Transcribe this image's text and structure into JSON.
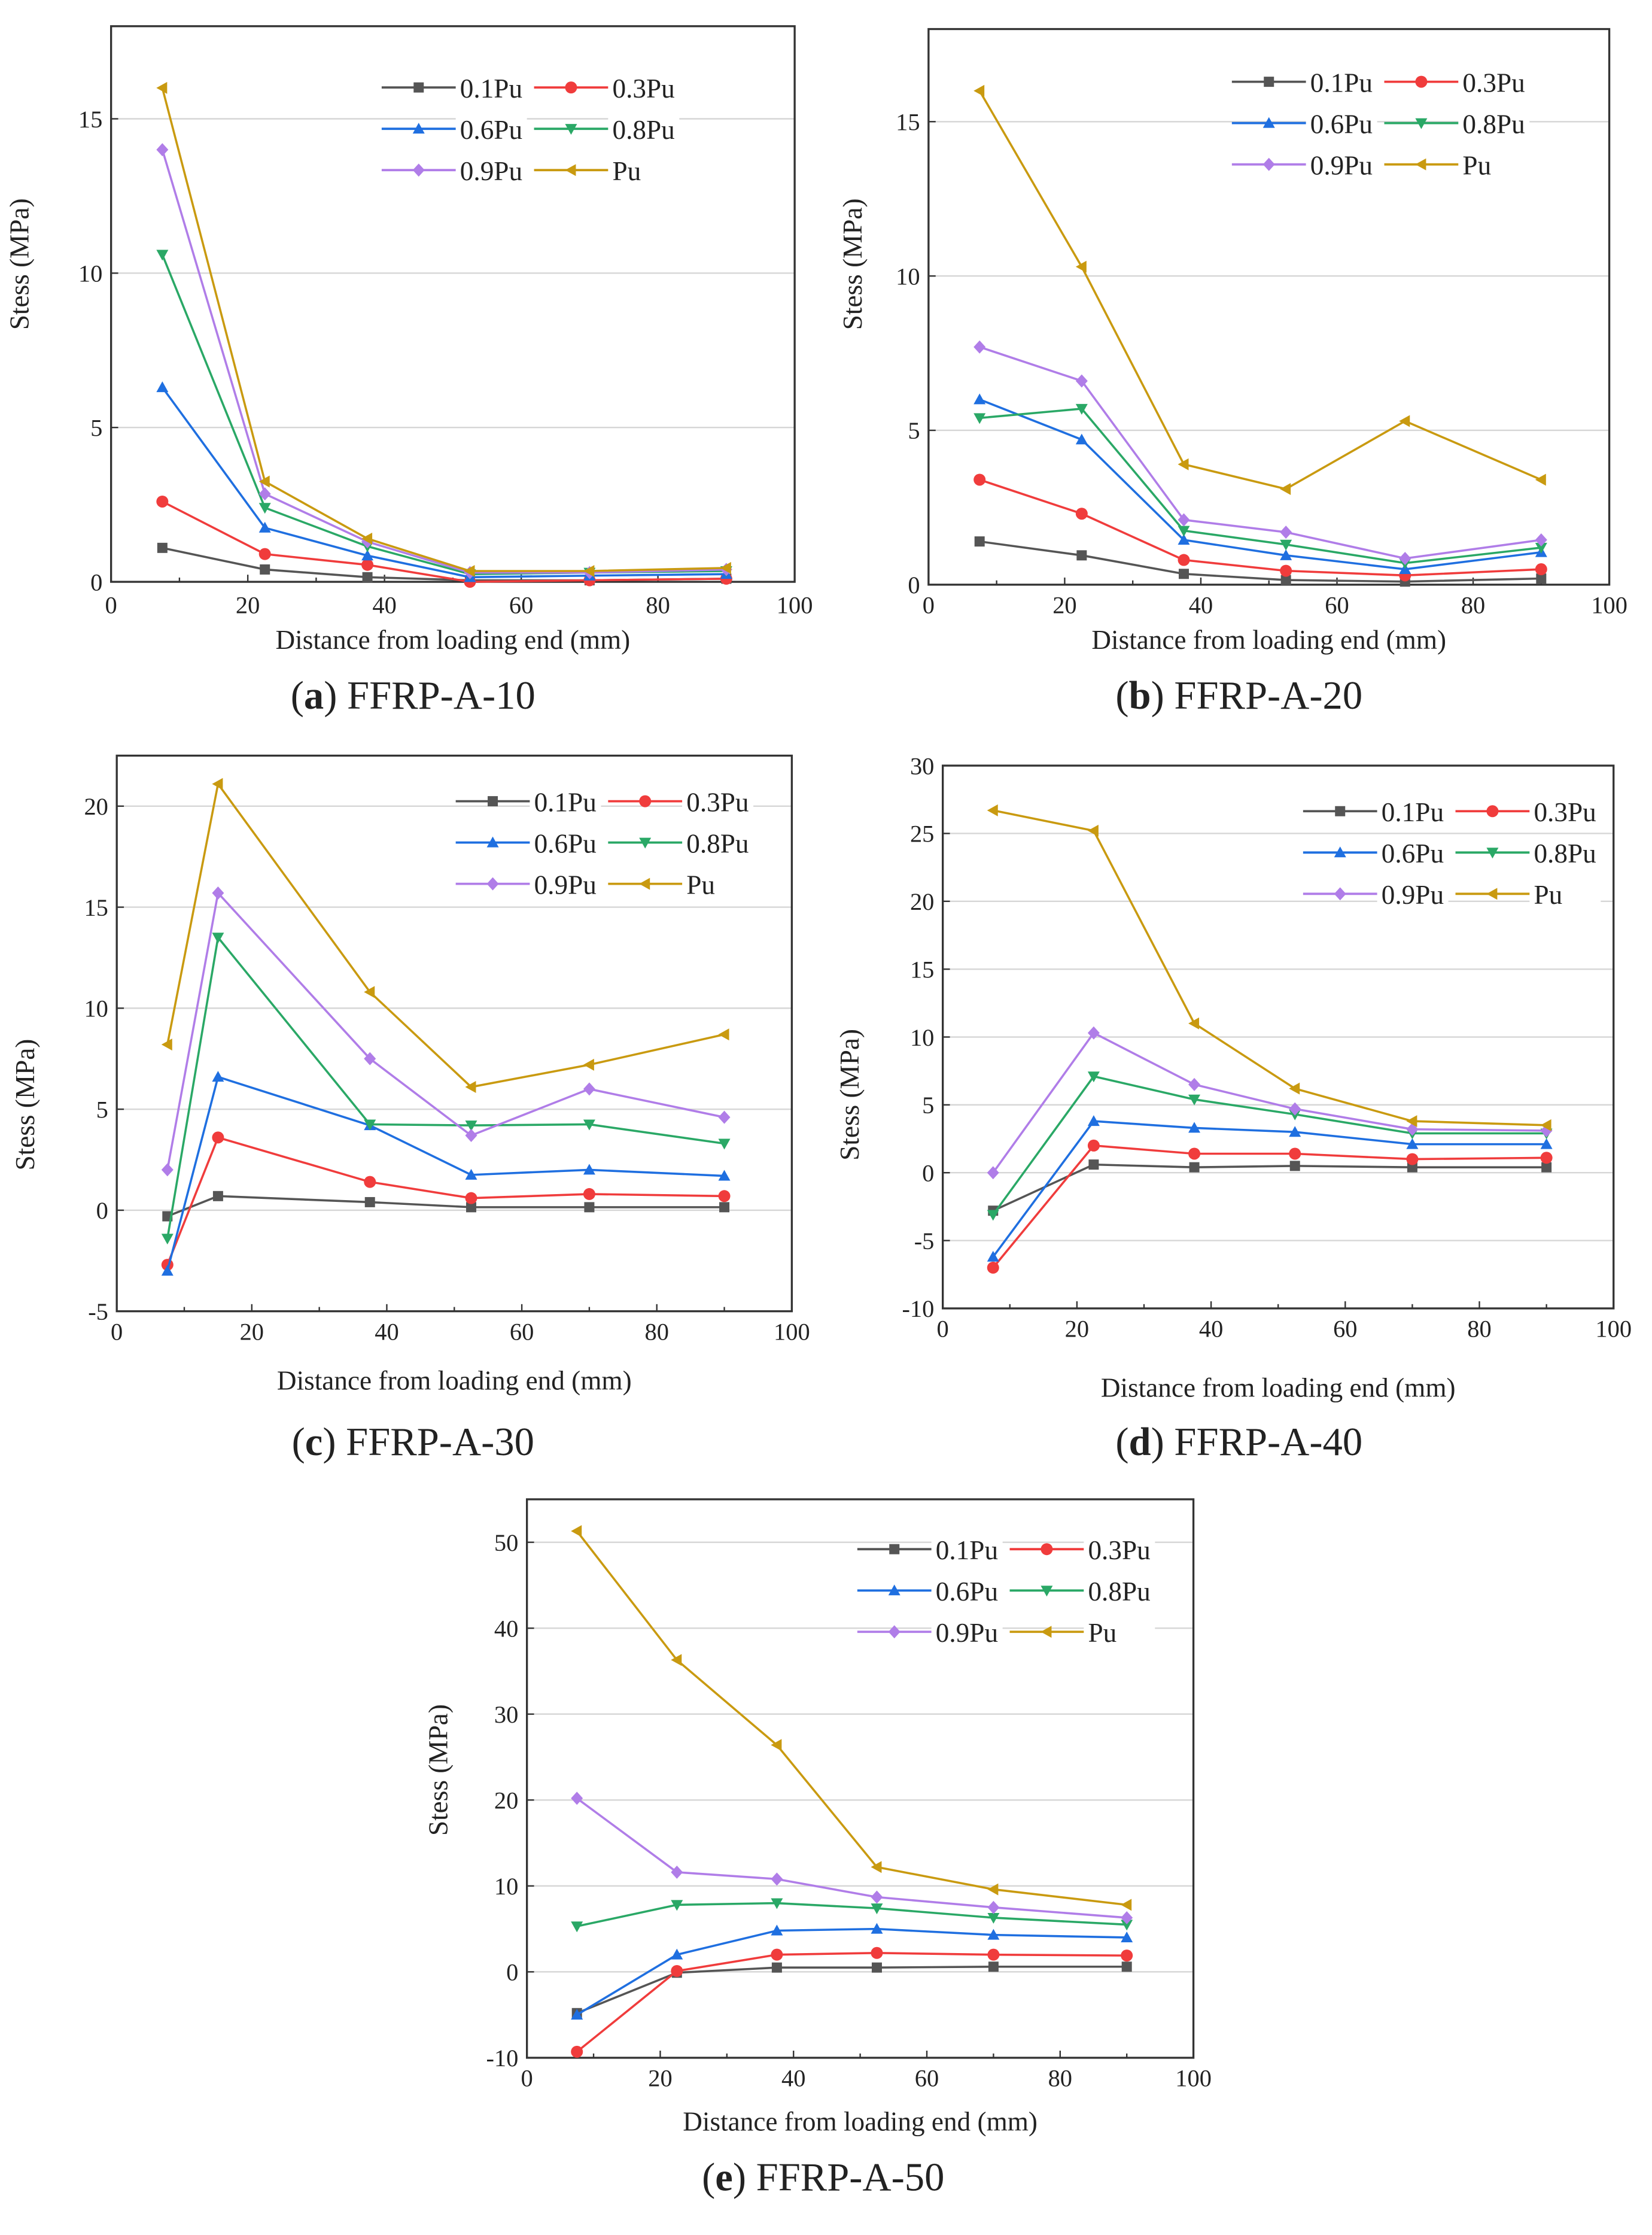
{
  "series_style": [
    {
      "name": "0.1Pu",
      "color": "#555555",
      "marker": "square"
    },
    {
      "name": "0.3Pu",
      "color": "#f03c3c",
      "marker": "circle"
    },
    {
      "name": "0.6Pu",
      "color": "#1f6fe0",
      "marker": "triangle-up"
    },
    {
      "name": "0.8Pu",
      "color": "#2aa866",
      "marker": "triangle-down"
    },
    {
      "name": "0.9Pu",
      "color": "#b07de8",
      "marker": "diamond"
    },
    {
      "name": "Pu",
      "color": "#c99a10",
      "marker": "triangle-left"
    }
  ],
  "chart_data": [
    {
      "type": "line",
      "panel": "a",
      "title": "FFRP-A-10",
      "xlabel": "Distance from loading end (mm)",
      "ylabel": "Stess (MPa)",
      "xlim": [
        0,
        100
      ],
      "ylim": [
        0,
        18
      ],
      "xticks": [
        0,
        20,
        40,
        60,
        80,
        100
      ],
      "yticks": [
        0,
        5,
        10,
        15
      ],
      "grid": "horizontal",
      "legend": "top-right",
      "x": [
        7.5,
        22.5,
        37.5,
        52.5,
        70,
        90
      ],
      "series": [
        {
          "name": "0.1Pu",
          "values": [
            1.1,
            0.4,
            0.15,
            0.05,
            0.05,
            0.1
          ]
        },
        {
          "name": "0.3Pu",
          "values": [
            2.6,
            0.9,
            0.55,
            0,
            0.05,
            0.1
          ]
        },
        {
          "name": "0.6Pu",
          "values": [
            6.3,
            1.75,
            0.85,
            0.15,
            0.2,
            0.25
          ]
        },
        {
          "name": "0.8Pu",
          "values": [
            10.6,
            2.4,
            1.15,
            0.25,
            0.3,
            0.35
          ]
        },
        {
          "name": "0.9Pu",
          "values": [
            14.0,
            2.85,
            1.3,
            0.3,
            0.3,
            0.4
          ]
        },
        {
          "name": "Pu",
          "values": [
            16.0,
            3.25,
            1.4,
            0.35,
            0.35,
            0.45
          ]
        }
      ]
    },
    {
      "type": "line",
      "panel": "b",
      "title": "FFRP-A-20",
      "xlabel": "Distance from loading end (mm)",
      "ylabel": "Stess (MPa)",
      "xlim": [
        0,
        100
      ],
      "ylim": [
        0,
        18
      ],
      "xticks": [
        0,
        20,
        40,
        60,
        80,
        100
      ],
      "yticks": [
        0,
        5,
        10,
        15
      ],
      "grid": "horizontal",
      "legend": "top-right",
      "x": [
        7.5,
        22.5,
        37.5,
        52.5,
        70,
        90
      ],
      "series": [
        {
          "name": "0.1Pu",
          "values": [
            1.4,
            0.95,
            0.35,
            0.15,
            0.1,
            0.2
          ]
        },
        {
          "name": "0.3Pu",
          "values": [
            3.4,
            2.3,
            0.8,
            0.45,
            0.3,
            0.5
          ]
        },
        {
          "name": "0.6Pu",
          "values": [
            6.0,
            4.7,
            1.45,
            0.95,
            0.5,
            1.05
          ]
        },
        {
          "name": "0.8Pu",
          "values": [
            5.4,
            5.7,
            1.75,
            1.3,
            0.7,
            1.2
          ]
        },
        {
          "name": "0.9Pu",
          "values": [
            7.7,
            6.6,
            2.1,
            1.7,
            0.85,
            1.45
          ]
        },
        {
          "name": "Pu",
          "values": [
            16.0,
            10.3,
            3.9,
            3.1,
            5.3,
            3.4
          ]
        }
      ]
    },
    {
      "type": "line",
      "panel": "c",
      "title": "FFRP-A-30",
      "xlabel": "Distance from loading end (mm)",
      "ylabel": "Stess (MPa)",
      "xlim": [
        0,
        100
      ],
      "ylim": [
        -5,
        22.5
      ],
      "xticks": [
        0,
        20,
        40,
        60,
        80,
        100
      ],
      "yticks": [
        -5,
        0,
        5,
        10,
        15,
        20
      ],
      "grid": "horizontal",
      "legend": "top-right",
      "x": [
        7.5,
        15,
        37.5,
        52.5,
        70,
        90
      ],
      "series": [
        {
          "name": "0.1Pu",
          "values": [
            -0.3,
            0.7,
            0.4,
            0.15,
            0.15,
            0.15
          ]
        },
        {
          "name": "0.3Pu",
          "values": [
            -2.7,
            3.6,
            1.4,
            0.6,
            0.8,
            0.7
          ]
        },
        {
          "name": "0.6Pu",
          "values": [
            -3.0,
            6.6,
            4.2,
            1.75,
            2.0,
            1.7
          ]
        },
        {
          "name": "0.8Pu",
          "values": [
            -1.4,
            13.5,
            4.25,
            4.2,
            4.25,
            3.3
          ]
        },
        {
          "name": "0.9Pu",
          "values": [
            2.0,
            15.7,
            7.5,
            3.7,
            6.0,
            4.6
          ]
        },
        {
          "name": "Pu",
          "values": [
            8.2,
            21.1,
            10.8,
            6.1,
            7.2,
            8.7
          ]
        }
      ]
    },
    {
      "type": "line",
      "panel": "d",
      "title": "FFRP-A-40",
      "xlabel": "Distance from loading end (mm)",
      "ylabel": "Stess (MPa)",
      "xlim": [
        0,
        100
      ],
      "ylim": [
        -10,
        30
      ],
      "xticks": [
        0,
        20,
        40,
        60,
        80,
        100
      ],
      "yticks": [
        -10,
        -5,
        0,
        5,
        10,
        15,
        20,
        25,
        30
      ],
      "grid": "horizontal",
      "legend": "top-right",
      "x": [
        7.5,
        22.5,
        37.5,
        52.5,
        70,
        90
      ],
      "series": [
        {
          "name": "0.1Pu",
          "values": [
            -2.8,
            0.6,
            0.4,
            0.5,
            0.4,
            0.4
          ]
        },
        {
          "name": "0.3Pu",
          "values": [
            -7.0,
            2.0,
            1.4,
            1.4,
            1.0,
            1.1
          ]
        },
        {
          "name": "0.6Pu",
          "values": [
            -6.2,
            3.8,
            3.3,
            3.0,
            2.1,
            2.1
          ]
        },
        {
          "name": "0.8Pu",
          "values": [
            -3.1,
            7.1,
            5.4,
            4.3,
            2.9,
            2.9
          ]
        },
        {
          "name": "0.9Pu",
          "values": [
            0,
            10.3,
            6.5,
            4.7,
            3.2,
            3.1
          ]
        },
        {
          "name": "Pu",
          "values": [
            26.7,
            25.2,
            11.0,
            6.2,
            3.8,
            3.5
          ]
        }
      ]
    },
    {
      "type": "line",
      "panel": "e",
      "title": "FFRP-A-50",
      "xlabel": "Distance from loading end (mm)",
      "ylabel": "Stess (MPa)",
      "xlim": [
        0,
        100
      ],
      "ylim": [
        -10,
        55
      ],
      "xticks": [
        0,
        20,
        40,
        60,
        80,
        100
      ],
      "yticks": [
        -10,
        0,
        10,
        20,
        30,
        40,
        50
      ],
      "grid": "horizontal",
      "legend": "top-right",
      "x": [
        7.5,
        22.5,
        37.5,
        52.5,
        70,
        90
      ],
      "series": [
        {
          "name": "0.1Pu",
          "values": [
            -4.8,
            -0.1,
            0.5,
            0.5,
            0.6,
            0.6
          ]
        },
        {
          "name": "0.3Pu",
          "values": [
            -9.3,
            0.1,
            2.0,
            2.2,
            2.0,
            1.9
          ]
        },
        {
          "name": "0.6Pu",
          "values": [
            -5.0,
            2.0,
            4.8,
            5.0,
            4.3,
            4.0
          ]
        },
        {
          "name": "0.8Pu",
          "values": [
            5.3,
            7.8,
            8.0,
            7.4,
            6.3,
            5.5
          ]
        },
        {
          "name": "0.9Pu",
          "values": [
            20.2,
            11.6,
            10.8,
            8.7,
            7.5,
            6.3
          ]
        },
        {
          "name": "Pu",
          "values": [
            51.3,
            36.3,
            26.4,
            12.2,
            9.6,
            7.8
          ]
        }
      ]
    }
  ]
}
